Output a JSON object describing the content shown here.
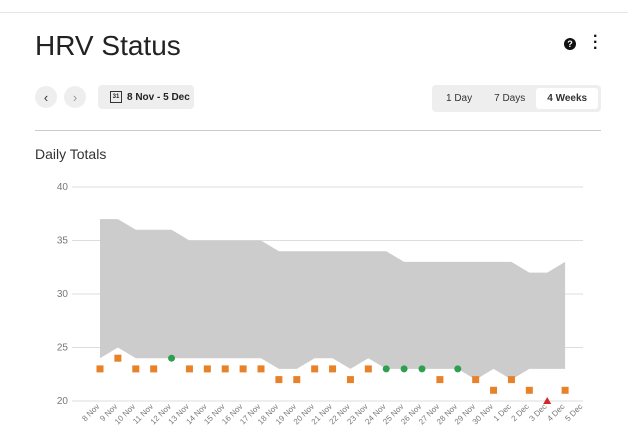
{
  "header": {
    "title": "HRV Status"
  },
  "date_range": "8 Nov - 5 Dec",
  "range_options": [
    "1 Day",
    "7 Days",
    "4 Weeks"
  ],
  "selected_range": 2,
  "chart_data": {
    "type": "range-scatter",
    "title": "Daily Totals",
    "categories": [
      "8 Nov",
      "9 Nov",
      "10 Nov",
      "11 Nov",
      "12 Nov",
      "13 Nov",
      "14 Nov",
      "15 Nov",
      "16 Nov",
      "17 Nov",
      "18 Nov",
      "19 Nov",
      "20 Nov",
      "21 Nov",
      "22 Nov",
      "23 Nov",
      "24 Nov",
      "25 Nov",
      "26 Nov",
      "27 Nov",
      "28 Nov",
      "29 Nov",
      "30 Nov",
      "1 Dec",
      "2 Dec",
      "3 Dec",
      "4 Dec",
      "5 Dec"
    ],
    "band": {
      "color": "#cccccc",
      "upper": [
        37,
        37,
        36,
        36,
        36,
        35,
        35,
        35,
        35,
        35,
        34,
        34,
        34,
        34,
        34,
        34,
        34,
        33,
        33,
        33,
        33,
        33,
        33,
        33,
        32,
        32,
        33,
        null
      ],
      "lower": [
        24,
        25,
        24,
        24,
        24,
        24,
        24,
        24,
        24,
        24,
        23,
        23,
        24,
        24,
        23,
        24,
        23,
        23,
        23,
        23,
        23,
        22,
        23,
        22,
        23,
        23,
        23,
        null
      ]
    },
    "series": [
      {
        "values": [
          23,
          24,
          23,
          23,
          24,
          23,
          23,
          23,
          23,
          23,
          22,
          22,
          23,
          23,
          22,
          23,
          23,
          23,
          23,
          22,
          23,
          22,
          21,
          22,
          21,
          20,
          21,
          null
        ],
        "colors": [
          "#e8822a",
          "#e8822a",
          "#e8822a",
          "#e8822a",
          "#2e9e4f",
          "#e8822a",
          "#e8822a",
          "#e8822a",
          "#e8822a",
          "#e8822a",
          "#e8822a",
          "#e8822a",
          "#e8822a",
          "#e8822a",
          "#e8822a",
          "#e8822a",
          "#2e9e4f",
          "#2e9e4f",
          "#2e9e4f",
          "#e8822a",
          "#2e9e4f",
          "#e8822a",
          "#e8822a",
          "#e8822a",
          "#e8822a",
          "#d62728",
          "#e8822a",
          null
        ],
        "markers": [
          "square",
          "square",
          "square",
          "square",
          "circle",
          "square",
          "square",
          "square",
          "square",
          "square",
          "square",
          "square",
          "square",
          "square",
          "square",
          "square",
          "circle",
          "circle",
          "circle",
          "square",
          "circle",
          "square",
          "square",
          "square",
          "square",
          "triangle",
          "square",
          null
        ]
      }
    ],
    "ylim": [
      20,
      40
    ],
    "yticks": [
      20,
      25,
      30,
      35,
      40
    ],
    "grid": true
  }
}
